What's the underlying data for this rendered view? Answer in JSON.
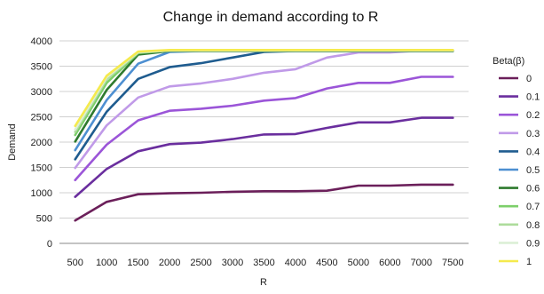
{
  "chart_data": {
    "type": "line",
    "title": "Change in demand according to R",
    "xlabel": "R",
    "ylabel": "Demand",
    "ylim": [
      0,
      4000
    ],
    "yticks": [
      0,
      500,
      1000,
      1500,
      2000,
      2500,
      3000,
      3500,
      4000
    ],
    "grid": "horizontal",
    "legend_title": "Beta(β)",
    "legend_position": "right",
    "categories": [
      "500",
      "1000",
      "1500",
      "2000",
      "2500",
      "3000",
      "3500",
      "4000",
      "4500",
      "5000",
      "6000",
      "7000",
      "7500"
    ],
    "series": [
      {
        "name": "0",
        "color": "#6b1f5a",
        "values": [
          450,
          820,
          970,
          990,
          1000,
          1020,
          1030,
          1030,
          1040,
          1140,
          1140,
          1160,
          1160
        ]
      },
      {
        "name": "0.1",
        "color": "#6a2e9e",
        "values": [
          920,
          1470,
          1820,
          1960,
          1990,
          2060,
          2150,
          2160,
          2280,
          2390,
          2390,
          2480,
          2480
        ]
      },
      {
        "name": "0.2",
        "color": "#9b55d8",
        "values": [
          1250,
          1950,
          2430,
          2620,
          2660,
          2720,
          2820,
          2870,
          3060,
          3170,
          3170,
          3290,
          3290
        ]
      },
      {
        "name": "0.3",
        "color": "#c09ae8",
        "values": [
          1490,
          2330,
          2880,
          3100,
          3160,
          3250,
          3370,
          3440,
          3670,
          3770,
          3770,
          3810,
          3810
        ]
      },
      {
        "name": "0.4",
        "color": "#1f5c8f",
        "values": [
          1660,
          2600,
          3250,
          3480,
          3560,
          3670,
          3780,
          3800,
          3800,
          3800,
          3800,
          3800,
          3800
        ]
      },
      {
        "name": "0.5",
        "color": "#4d8fd1",
        "values": [
          1840,
          2830,
          3550,
          3780,
          3800,
          3800,
          3800,
          3800,
          3800,
          3800,
          3800,
          3800,
          3800
        ]
      },
      {
        "name": "0.6",
        "color": "#2e7a2e",
        "values": [
          2010,
          3030,
          3730,
          3800,
          3800,
          3800,
          3800,
          3800,
          3800,
          3800,
          3800,
          3800,
          3800
        ]
      },
      {
        "name": "0.7",
        "color": "#7ccf6a",
        "values": [
          2140,
          3170,
          3760,
          3810,
          3810,
          3810,
          3810,
          3810,
          3810,
          3810,
          3810,
          3810,
          3810
        ]
      },
      {
        "name": "0.8",
        "color": "#aedc9c",
        "values": [
          2200,
          3240,
          3770,
          3810,
          3810,
          3810,
          3810,
          3810,
          3810,
          3810,
          3810,
          3810,
          3810
        ]
      },
      {
        "name": "0.9",
        "color": "#dcefd6",
        "values": [
          2250,
          3280,
          3780,
          3810,
          3810,
          3810,
          3810,
          3810,
          3810,
          3810,
          3810,
          3810,
          3810
        ]
      },
      {
        "name": "1",
        "color": "#f5ea4d",
        "values": [
          2320,
          3310,
          3790,
          3820,
          3820,
          3820,
          3820,
          3820,
          3820,
          3820,
          3820,
          3820,
          3820
        ]
      }
    ]
  }
}
